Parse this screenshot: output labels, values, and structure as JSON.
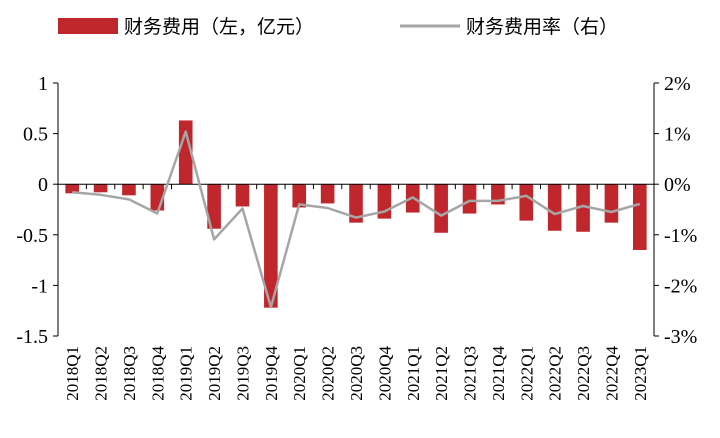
{
  "chart_data": {
    "type": "bar",
    "categories": [
      "2018Q1",
      "2018Q2",
      "2018Q3",
      "2018Q4",
      "2019Q1",
      "2019Q2",
      "2019Q3",
      "2019Q4",
      "2020Q1",
      "2020Q2",
      "2020Q3",
      "2020Q4",
      "2021Q1",
      "2021Q2",
      "2021Q3",
      "2021Q4",
      "2022Q1",
      "2022Q2",
      "2022Q3",
      "2022Q4",
      "2023Q1"
    ],
    "series": [
      {
        "name": "财务费用（左，亿元）",
        "type": "bar",
        "axis": "left",
        "color": "#c0272d",
        "values": [
          -0.09,
          -0.08,
          -0.11,
          -0.26,
          0.63,
          -0.44,
          -0.22,
          -1.22,
          -0.23,
          -0.19,
          -0.38,
          -0.34,
          -0.28,
          -0.48,
          -0.29,
          -0.2,
          -0.36,
          -0.46,
          -0.47,
          -0.38,
          -0.65
        ]
      },
      {
        "name": "财务费用率（右）",
        "type": "line",
        "axis": "right",
        "color": "#a6a6a6",
        "values": [
          -0.16,
          -0.21,
          -0.3,
          -0.58,
          1.04,
          -1.09,
          -0.48,
          -2.43,
          -0.4,
          -0.47,
          -0.66,
          -0.54,
          -0.26,
          -0.62,
          -0.33,
          -0.33,
          -0.23,
          -0.59,
          -0.43,
          -0.55,
          -0.39
        ]
      }
    ],
    "y_left": {
      "ylim": [
        -1.5,
        1
      ],
      "ticks": [
        1,
        0.5,
        0,
        -0.5,
        -1,
        -1.5
      ],
      "tick_labels": [
        "1",
        "0.5",
        "0",
        "-0.5",
        "-1",
        "-1.5"
      ]
    },
    "y_right": {
      "ylim": [
        -3,
        2
      ],
      "ticks": [
        2,
        1,
        0,
        -1,
        -2,
        -3
      ],
      "tick_labels": [
        "2%",
        "1%",
        "0%",
        "-1%",
        "-2%",
        "-3%"
      ]
    },
    "legend_position": "top",
    "grid": false
  }
}
